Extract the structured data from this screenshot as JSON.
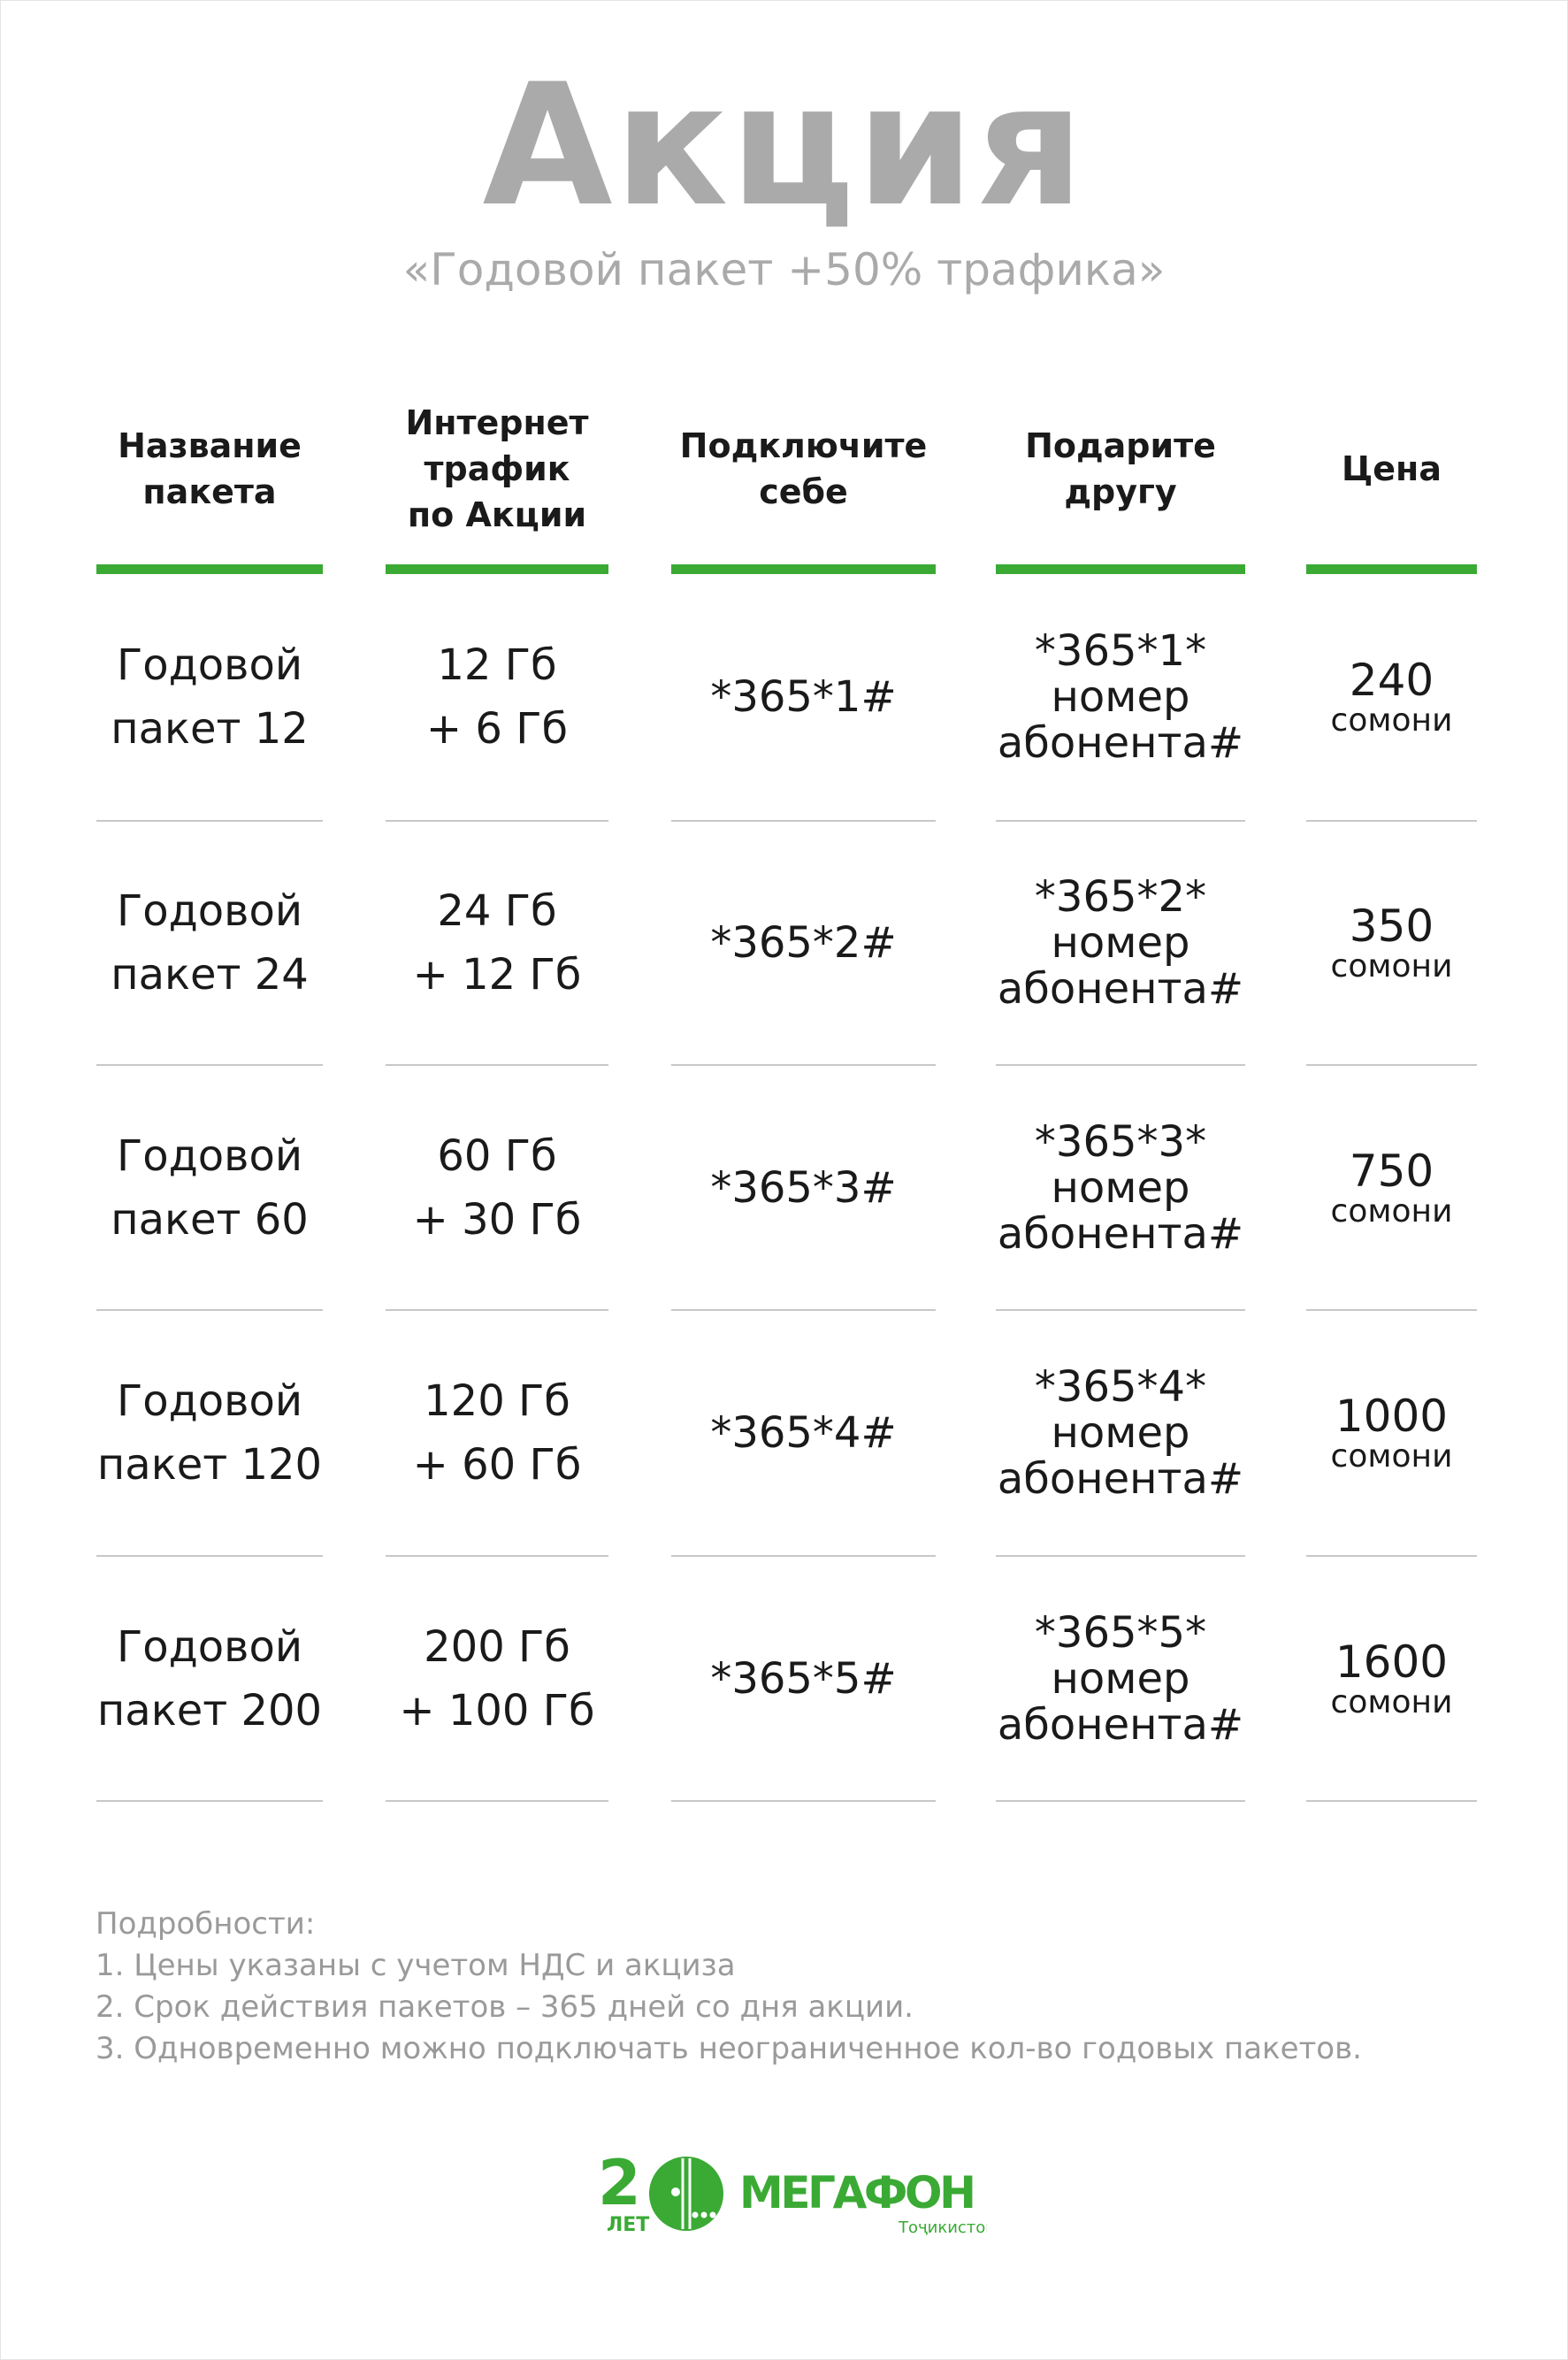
{
  "title": "Акция",
  "subtitle": "«Годовой пакет +50% трафика»",
  "accent_color": "#3aaa35",
  "table": {
    "headers": [
      "Название\nпакета",
      "Интернет\nтрафик\nпо Акции",
      "Подключите\nсебе",
      "Подарите\nдругу",
      "Цена"
    ],
    "rows": [
      {
        "name": [
          "Годовой",
          "пакет 12"
        ],
        "traffic": [
          "12 Гб",
          "+ 6 Гб"
        ],
        "self": "*365*1#",
        "gift": [
          "*365*1*",
          "номер",
          "абонента#"
        ],
        "price": "240",
        "currency": "сомони"
      },
      {
        "name": [
          "Годовой",
          "пакет 24"
        ],
        "traffic": [
          "24 Гб",
          "+ 12 Гб"
        ],
        "self": "*365*2#",
        "gift": [
          "*365*2*",
          "номер",
          "абонента#"
        ],
        "price": "350",
        "currency": "сомони"
      },
      {
        "name": [
          "Годовой",
          "пакет 60"
        ],
        "traffic": [
          "60 Гб",
          "+ 30 Гб"
        ],
        "self": "*365*3#",
        "gift": [
          "*365*3*",
          "номер",
          "абонента#"
        ],
        "price": "750",
        "currency": "сомони"
      },
      {
        "name": [
          "Годовой",
          "пакет 120"
        ],
        "traffic": [
          "120 Гб",
          "+ 60 Гб"
        ],
        "self": "*365*4#",
        "gift": [
          "*365*4*",
          "номер",
          "абонента#"
        ],
        "price": "1000",
        "currency": "сомони"
      },
      {
        "name": [
          "Годовой",
          "пакет 200"
        ],
        "traffic": [
          "200 Гб",
          "+ 100 Гб"
        ],
        "self": "*365*5#",
        "gift": [
          "*365*5*",
          "номер",
          "абонента#"
        ],
        "price": "1600",
        "currency": "сомони"
      }
    ]
  },
  "notes": [
    "Подробности:",
    "1. Цены указаны с учетом НДС и акциза",
    "2. Срок действия пакетов – 365 дней со дня акции.",
    "3. Одновременно можно подключать неограниченное кол-во годовых пакетов."
  ],
  "logo": {
    "badge": "20 ЛЕТ",
    "brand": "МегаФон",
    "region": "Тоҷикистон"
  }
}
